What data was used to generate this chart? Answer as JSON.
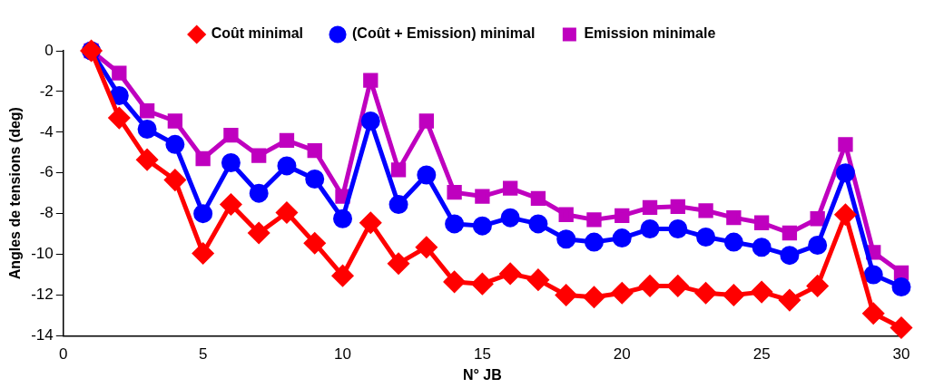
{
  "chart_data": {
    "type": "line",
    "xlabel": "N° JB",
    "ylabel": "Angles de tensions (deg)",
    "x": [
      1,
      2,
      3,
      4,
      5,
      6,
      7,
      8,
      9,
      10,
      11,
      12,
      13,
      14,
      15,
      16,
      17,
      18,
      19,
      20,
      21,
      22,
      23,
      24,
      25,
      26,
      27,
      28,
      29,
      30
    ],
    "series": [
      {
        "name": "Coût minimal",
        "color": "#ff0000",
        "marker": "diamond",
        "values": [
          0,
          -3.3,
          -5.35,
          -6.35,
          -9.95,
          -7.55,
          -8.95,
          -7.95,
          -9.45,
          -11.05,
          -8.45,
          -10.45,
          -9.65,
          -11.35,
          -11.45,
          -10.95,
          -11.25,
          -12.0,
          -12.1,
          -11.9,
          -11.55,
          -11.55,
          -11.9,
          -12.0,
          -11.85,
          -12.25,
          -11.55,
          -8.05,
          -12.9,
          -13.6
        ]
      },
      {
        "name": "(Coût + Emission) minimal",
        "color": "#0000ff",
        "marker": "circle",
        "values": [
          0,
          -2.2,
          -3.85,
          -4.6,
          -8.0,
          -5.5,
          -7.0,
          -5.65,
          -6.3,
          -8.25,
          -3.45,
          -7.55,
          -6.1,
          -8.5,
          -8.6,
          -8.2,
          -8.5,
          -9.25,
          -9.4,
          -9.2,
          -8.75,
          -8.75,
          -9.15,
          -9.4,
          -9.65,
          -10.05,
          -9.55,
          -6.0,
          -11.0,
          -11.6
        ]
      },
      {
        "name": "Emission minimale",
        "color": "#bf00bf",
        "marker": "square",
        "values": [
          0,
          -1.1,
          -2.95,
          -3.45,
          -5.3,
          -4.15,
          -5.15,
          -4.4,
          -4.9,
          -7.15,
          -1.45,
          -5.85,
          -3.45,
          -6.95,
          -7.15,
          -6.75,
          -7.25,
          -8.05,
          -8.3,
          -8.1,
          -7.7,
          -7.65,
          -7.85,
          -8.2,
          -8.45,
          -8.95,
          -8.25,
          -4.6,
          -9.9,
          -10.9
        ]
      }
    ],
    "xlim": [
      0,
      30
    ],
    "xticks": [
      0,
      5,
      10,
      15,
      20,
      25,
      30
    ],
    "ylim": [
      -14,
      0
    ],
    "yticks": [
      -14,
      -12,
      -10,
      -8,
      -6,
      -4,
      -2,
      0
    ],
    "grid": false,
    "legend": "top",
    "line_style": "solid"
  }
}
